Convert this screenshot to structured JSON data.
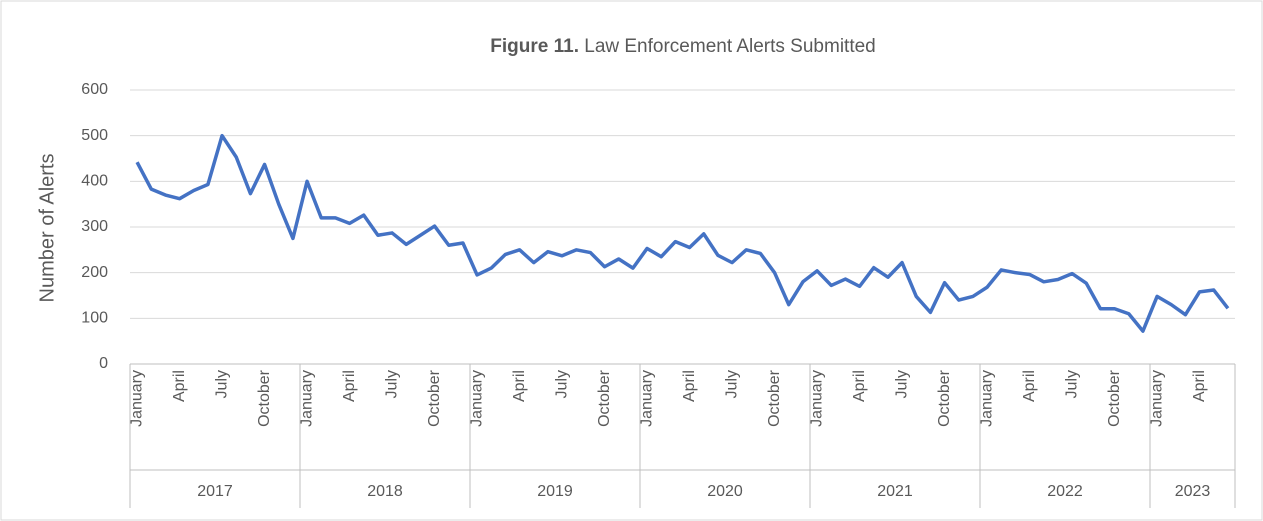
{
  "chart_data": {
    "type": "line",
    "title_bold": "Figure 11.",
    "title": "Law Enforcement Alerts Submitted",
    "y_label": "Number of Alerts",
    "categories": [
      "January",
      null,
      null,
      "April",
      null,
      null,
      "July",
      null,
      null,
      "October",
      null,
      null,
      "January",
      null,
      null,
      "April",
      null,
      null,
      "July",
      null,
      null,
      "October",
      null,
      null,
      "January",
      null,
      null,
      "April",
      null,
      null,
      "July",
      null,
      null,
      "October",
      null,
      null,
      "January",
      null,
      null,
      "April",
      null,
      null,
      "July",
      null,
      null,
      "October",
      null,
      null,
      "January",
      null,
      null,
      "April",
      null,
      null,
      "July",
      null,
      null,
      "October",
      null,
      null,
      "January",
      null,
      null,
      "April",
      null,
      null,
      "July",
      null,
      null,
      "October",
      null,
      null,
      "January",
      null,
      null,
      "April",
      null,
      null
    ],
    "groups": [
      "2017",
      "2018",
      "2019",
      "2020",
      "2021",
      "2022",
      "2023"
    ],
    "values": [
      442,
      383,
      370,
      362,
      380,
      393,
      500,
      453,
      373,
      437,
      350,
      275,
      400,
      320,
      320,
      308,
      326,
      282,
      287,
      262,
      282,
      302,
      260,
      265,
      195,
      210,
      240,
      250,
      222,
      246,
      237,
      250,
      244,
      213,
      230,
      210,
      253,
      235,
      268,
      255,
      285,
      238,
      222,
      250,
      242,
      200,
      130,
      180,
      204,
      172,
      186,
      170,
      211,
      190,
      222,
      148,
      113,
      178,
      140,
      148,
      168,
      206,
      200,
      196,
      180,
      185,
      198,
      177,
      121,
      121,
      110,
      72,
      148,
      130,
      108,
      158,
      162,
      122
    ],
    "color": "#4472c4",
    "ylim": [
      0,
      600
    ],
    "yticks": [
      0,
      100,
      200,
      300,
      400,
      500,
      600
    ],
    "grid": true
  }
}
